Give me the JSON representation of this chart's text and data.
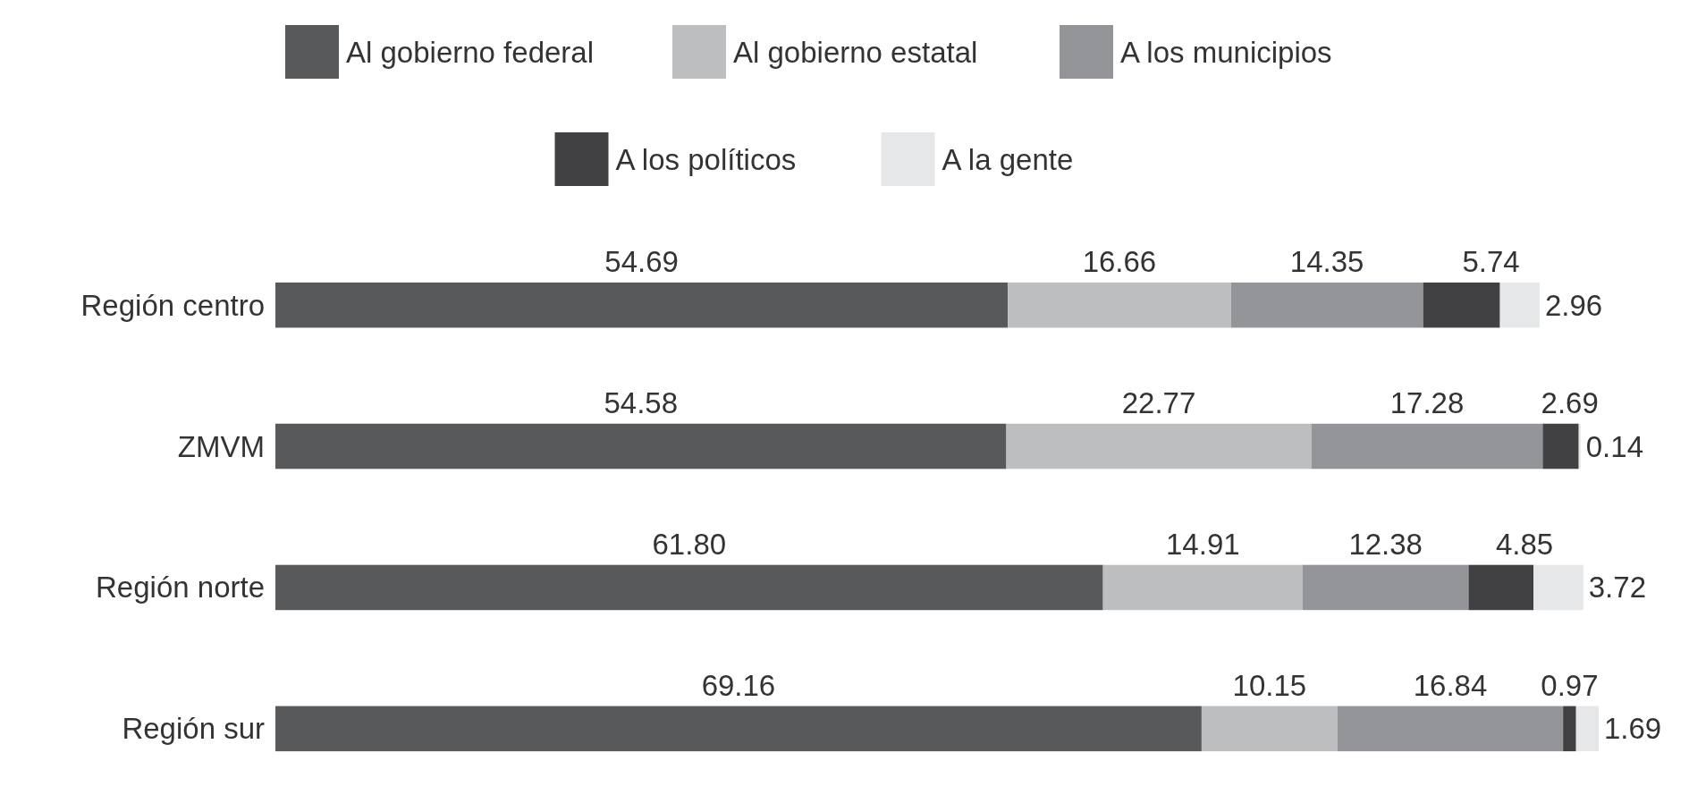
{
  "chart_data": {
    "type": "bar",
    "orientation": "horizontal",
    "stacked": true,
    "legend": "top",
    "categories": [
      "Región centro",
      "ZMVM",
      "Región norte",
      "Región sur"
    ],
    "series": [
      {
        "name": "Al gobierno federal",
        "color": "#58595b",
        "values": [
          54.69,
          54.58,
          61.8,
          69.16
        ],
        "value_labels": [
          "54.69",
          "54.58",
          "61.80",
          "69.16"
        ]
      },
      {
        "name": "Al gobierno estatal",
        "color": "#bcbec0",
        "values": [
          16.66,
          22.77,
          14.91,
          10.15
        ],
        "value_labels": [
          "16.66",
          "22.77",
          "14.91",
          "10.15"
        ]
      },
      {
        "name": "A los municipios",
        "color": "#939598",
        "values": [
          14.35,
          17.28,
          12.38,
          16.84
        ],
        "value_labels": [
          "14.35",
          "17.28",
          "12.38",
          "16.84"
        ]
      },
      {
        "name": "A los políticos",
        "color": "#414042",
        "values": [
          5.74,
          2.69,
          4.85,
          0.97
        ],
        "value_labels": [
          "5.74",
          "2.69",
          "4.85",
          "0.97"
        ]
      },
      {
        "name": "A la gente",
        "color": "#e6e7e8",
        "values": [
          2.96,
          0.14,
          3.72,
          1.69
        ],
        "value_labels": [
          "2.96",
          "0.14",
          "3.72",
          "1.69"
        ]
      }
    ]
  }
}
